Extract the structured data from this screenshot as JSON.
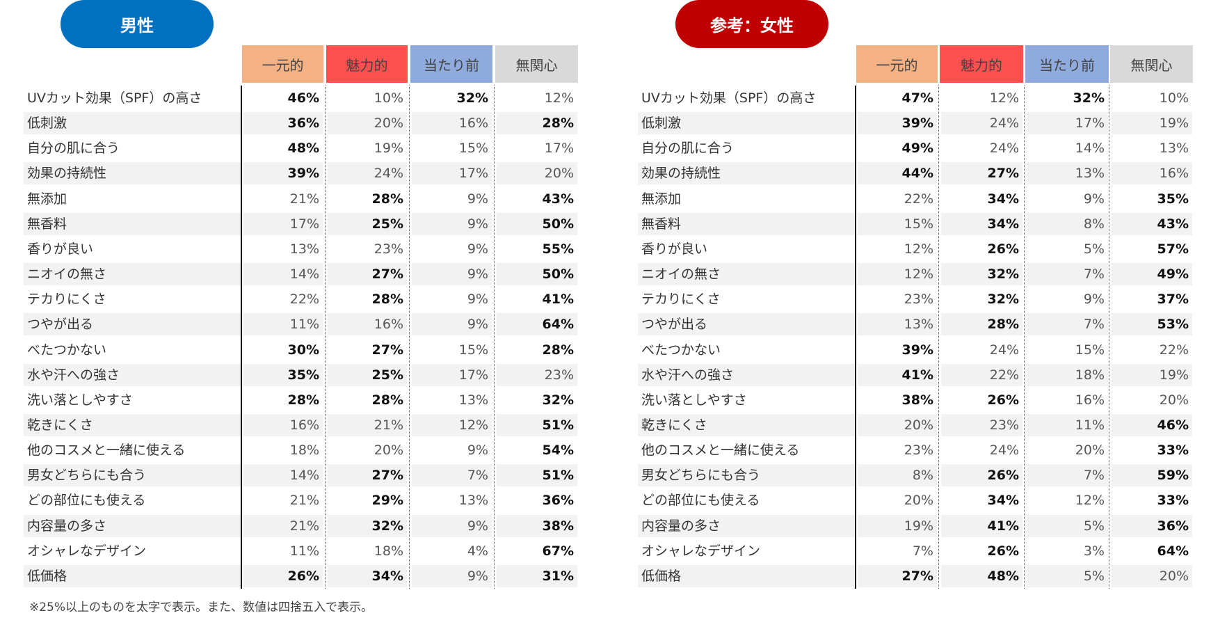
{
  "columns": [
    "一元的",
    "魅力的",
    "当たり前",
    "無関心"
  ],
  "column_colors": [
    "#f4b183",
    "#ff5050",
    "#8faadc",
    "#d9d9d9"
  ],
  "labels": [
    "UVカット効果（SPF）の高さ",
    "低刺激",
    "自分の肌に合う",
    "効果の持続性",
    "無添加",
    "無香料",
    "香りが良い",
    "ニオイの無さ",
    "テカりにくさ",
    "つやが出る",
    "べたつかない",
    "水や汗への強さ",
    "洗い落としやすさ",
    "乾きにくさ",
    "他のコスメと一緒に使える",
    "男女どちらにも合う",
    "どの部位にも使える",
    "内容量の多さ",
    "オシャレなデザイン",
    "低価格"
  ],
  "bold_threshold_percent": 25,
  "tables": [
    {
      "title": "男性",
      "title_color": "#0070c0",
      "values": [
        [
          "46%",
          "10%",
          "32%",
          "12%"
        ],
        [
          "36%",
          "20%",
          "16%",
          "28%"
        ],
        [
          "48%",
          "19%",
          "15%",
          "17%"
        ],
        [
          "39%",
          "24%",
          "17%",
          "20%"
        ],
        [
          "21%",
          "28%",
          "9%",
          "43%"
        ],
        [
          "17%",
          "25%",
          "9%",
          "50%"
        ],
        [
          "13%",
          "23%",
          "9%",
          "55%"
        ],
        [
          "14%",
          "27%",
          "9%",
          "50%"
        ],
        [
          "22%",
          "28%",
          "9%",
          "41%"
        ],
        [
          "11%",
          "16%",
          "9%",
          "64%"
        ],
        [
          "30%",
          "27%",
          "15%",
          "28%"
        ],
        [
          "35%",
          "25%",
          "17%",
          "23%"
        ],
        [
          "28%",
          "28%",
          "13%",
          "32%"
        ],
        [
          "16%",
          "21%",
          "12%",
          "51%"
        ],
        [
          "18%",
          "20%",
          "9%",
          "54%"
        ],
        [
          "14%",
          "27%",
          "7%",
          "51%"
        ],
        [
          "21%",
          "29%",
          "13%",
          "36%"
        ],
        [
          "21%",
          "32%",
          "9%",
          "38%"
        ],
        [
          "11%",
          "18%",
          "4%",
          "67%"
        ],
        [
          "26%",
          "34%",
          "9%",
          "31%"
        ]
      ]
    },
    {
      "title": "参考：女性",
      "title_color": "#c00000",
      "values": [
        [
          "47%",
          "12%",
          "32%",
          "10%"
        ],
        [
          "39%",
          "24%",
          "17%",
          "19%"
        ],
        [
          "49%",
          "24%",
          "14%",
          "13%"
        ],
        [
          "44%",
          "27%",
          "13%",
          "16%"
        ],
        [
          "22%",
          "34%",
          "9%",
          "35%"
        ],
        [
          "15%",
          "34%",
          "8%",
          "43%"
        ],
        [
          "12%",
          "26%",
          "5%",
          "57%"
        ],
        [
          "12%",
          "32%",
          "7%",
          "49%"
        ],
        [
          "23%",
          "32%",
          "9%",
          "37%"
        ],
        [
          "13%",
          "28%",
          "7%",
          "53%"
        ],
        [
          "39%",
          "24%",
          "15%",
          "22%"
        ],
        [
          "41%",
          "22%",
          "18%",
          "19%"
        ],
        [
          "38%",
          "26%",
          "16%",
          "20%"
        ],
        [
          "20%",
          "23%",
          "11%",
          "46%"
        ],
        [
          "23%",
          "24%",
          "20%",
          "33%"
        ],
        [
          "8%",
          "26%",
          "7%",
          "59%"
        ],
        [
          "20%",
          "34%",
          "12%",
          "33%"
        ],
        [
          "19%",
          "41%",
          "5%",
          "36%"
        ],
        [
          "7%",
          "26%",
          "3%",
          "64%"
        ],
        [
          "27%",
          "48%",
          "5%",
          "20%"
        ]
      ]
    }
  ],
  "footnote": "※25%以上のものを太字で表示。また、数値は四捨五入で表示。"
}
